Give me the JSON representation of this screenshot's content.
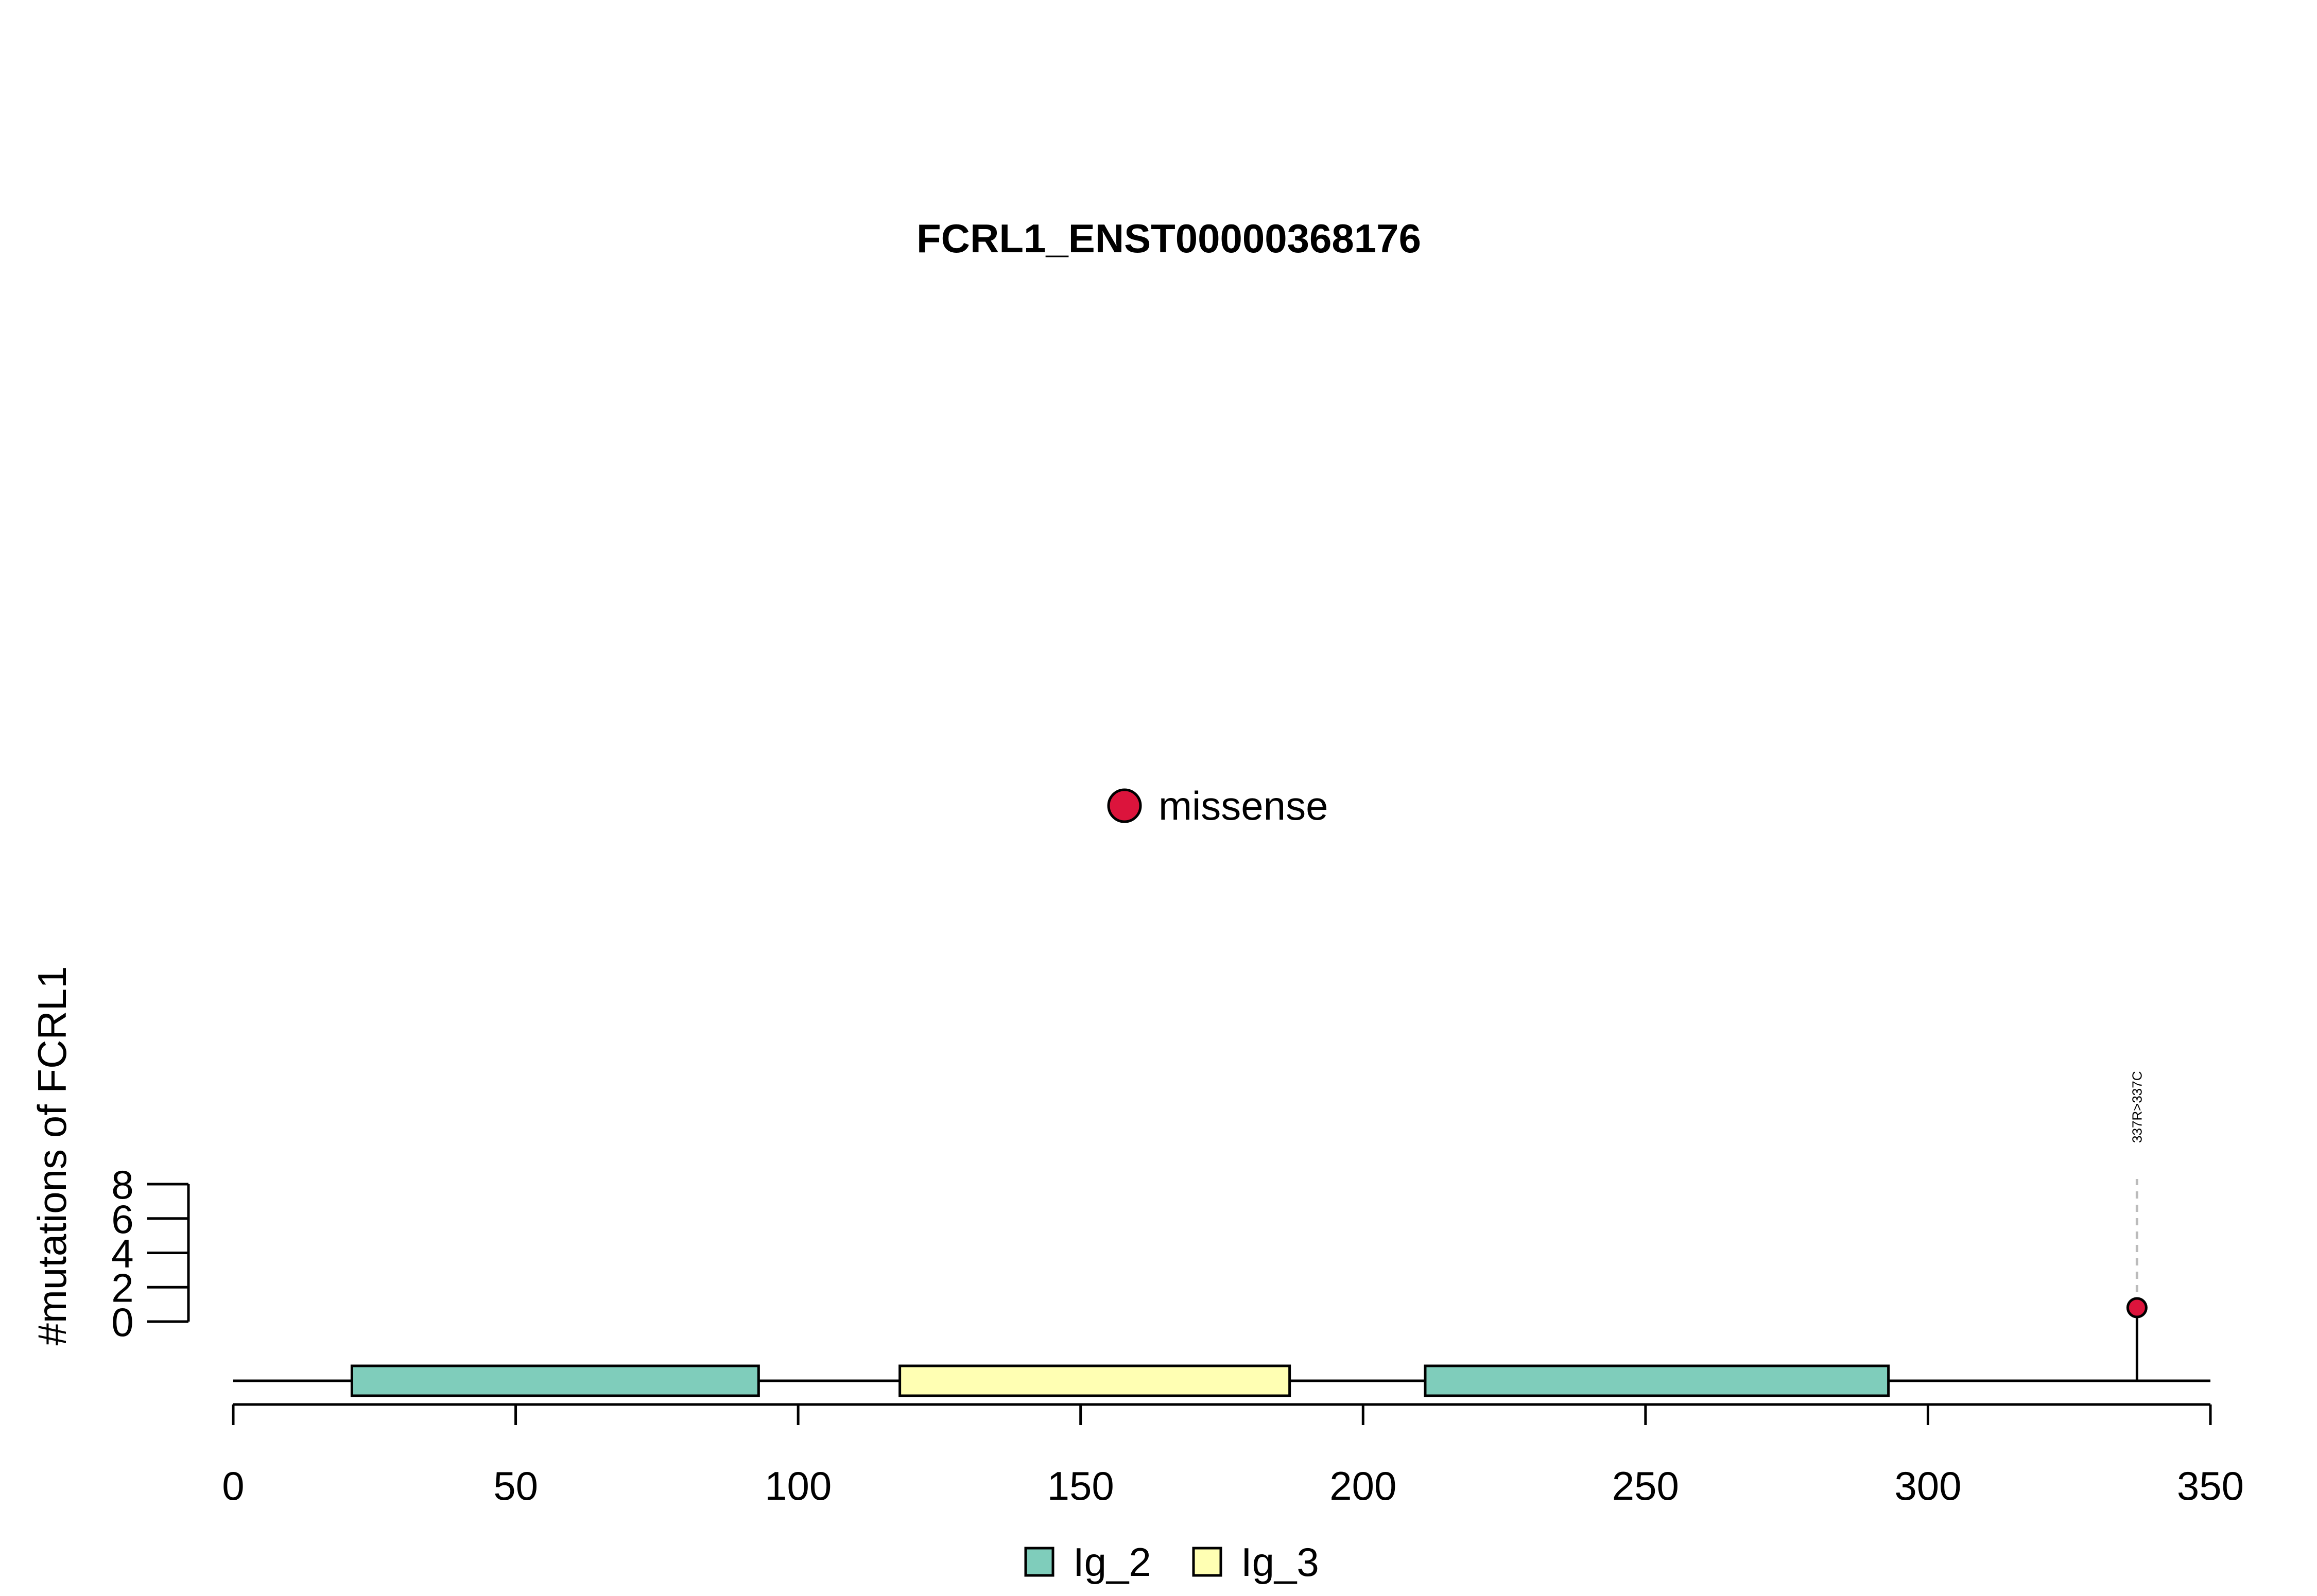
{
  "chart_data": {
    "type": "lollipop",
    "title": "FCRL1_ENST00000368176",
    "xlabel": "",
    "ylabel": "#mutations of FCRL1",
    "xlim": [
      0,
      350
    ],
    "x_ticks": [
      0,
      50,
      100,
      150,
      200,
      250,
      300,
      350
    ],
    "ylim": [
      0,
      8
    ],
    "y_ticks": [
      0,
      2,
      4,
      6,
      8
    ],
    "grid": false,
    "mutation_types": [
      {
        "name": "missense",
        "color": "#DC143C"
      }
    ],
    "domains": [
      {
        "name": "Ig_2",
        "start": 21,
        "end": 93,
        "color": "#7FCDBB"
      },
      {
        "name": "Ig_3",
        "start": 118,
        "end": 187,
        "color": "#FFFFB3"
      },
      {
        "name": "Ig_2",
        "start": 211,
        "end": 293,
        "color": "#7FCDBB"
      }
    ],
    "domain_legend": [
      {
        "name": "Ig_2",
        "color": "#7FCDBB"
      },
      {
        "name": "Ig_3",
        "color": "#FFFFB3"
      }
    ],
    "mutations": [
      {
        "position": 337,
        "count": 1,
        "type": "missense",
        "label": "337R>337C"
      }
    ]
  }
}
